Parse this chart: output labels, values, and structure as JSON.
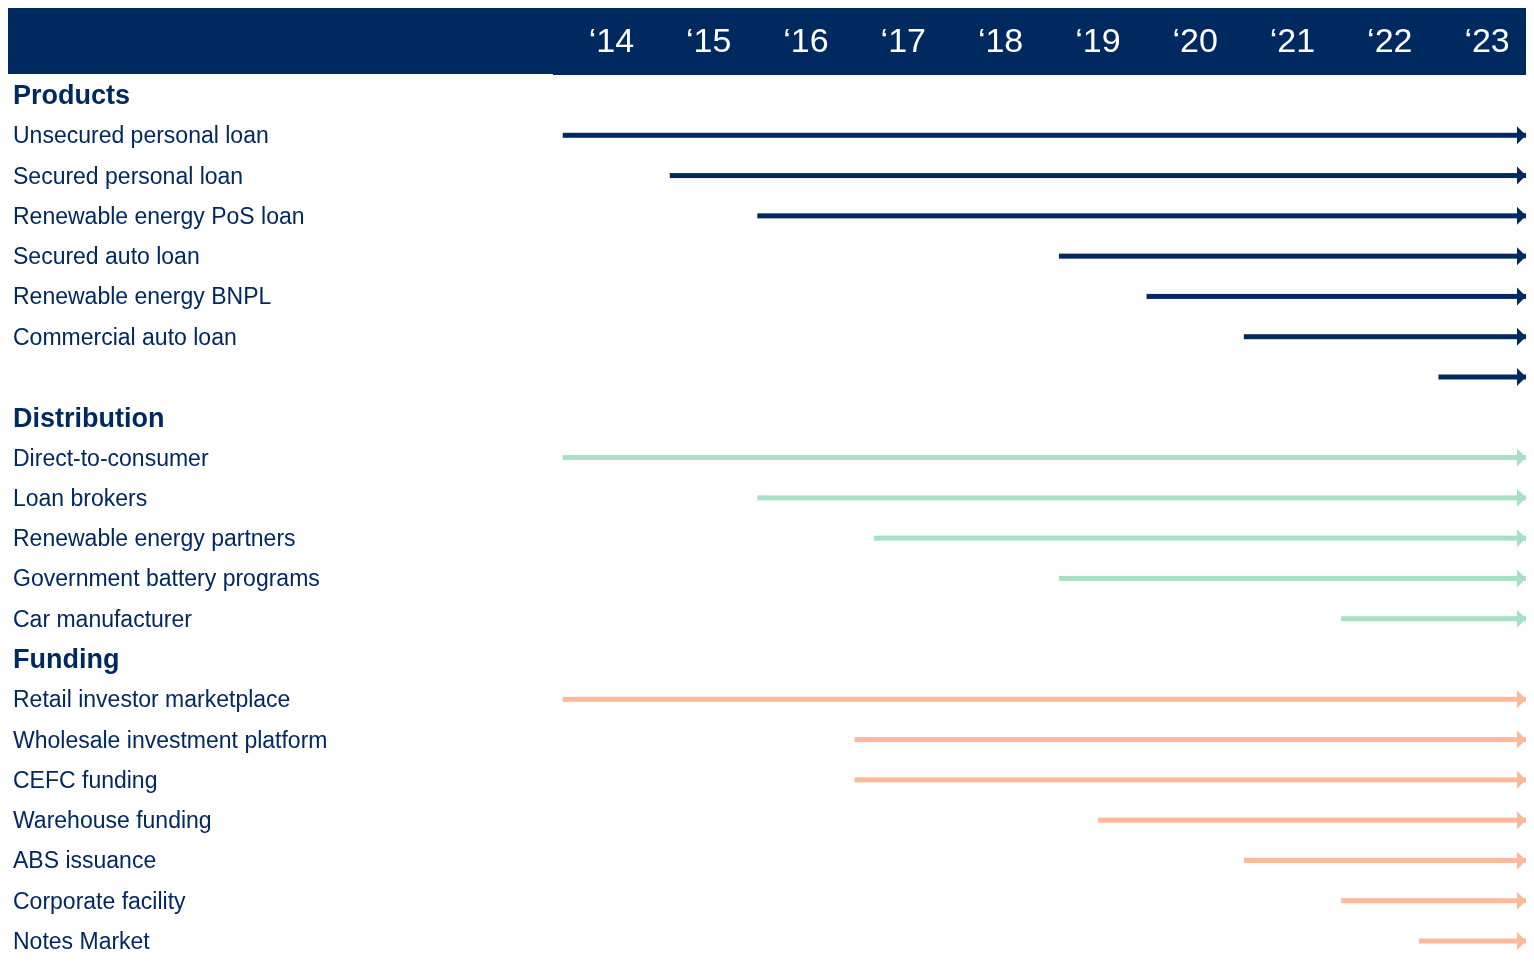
{
  "chart_data": {
    "type": "bar",
    "orientation": "horizontal",
    "categories": [
      "Products",
      "Unsecured personal loan",
      "Secured personal loan",
      "Renewable energy PoS loan",
      "Secured auto  loan",
      "Renewable energy BNPL",
      "Commercial auto loan",
      null,
      "Distribution",
      "Direct-to-consumer",
      "Loan brokers",
      "Renewable energy partners",
      "Government battery programs",
      "Car manufacturer",
      "Funding",
      "Retail investor marketplace",
      "Wholesale investment platform",
      "CEFC funding",
      "Warehouse funding",
      "ABS issuance",
      "Corporate facility",
      "Notes Market"
    ],
    "base": [
      null,
      13.5,
      14.6,
      15.5,
      18.6,
      19.5,
      20.5,
      22.5,
      null,
      13.5,
      15.5,
      16.7,
      18.6,
      21.5,
      null,
      13.5,
      16.5,
      16.5,
      19.0,
      20.5,
      21.5,
      22.3
    ],
    "values": [
      null,
      9.9,
      8.8,
      7.9,
      4.8,
      3.9,
      2.9,
      0.9,
      null,
      9.9,
      7.9,
      6.7,
      4.8,
      1.9,
      null,
      9.9,
      6.9,
      6.9,
      4.4,
      2.9,
      1.9,
      1.1
    ],
    "colors": [
      null,
      "#002960",
      "#002960",
      "#002960",
      "#002960",
      "#002960",
      "#002960",
      "#002960",
      null,
      "#a8e0c6",
      "#a8e0c6",
      "#a8e0c6",
      "#a8e0c6",
      "#a8e0c6",
      null,
      "#fdb99a",
      "#fdb99a",
      "#fdb99a",
      "#fdb99a",
      "#fdb99a",
      "#fdb99a",
      "#fdb99a"
    ],
    "xlim": [
      13.4,
      23.4
    ],
    "xticks": [
      {
        "value": 14,
        "label": "‘14"
      },
      {
        "value": 15,
        "label": "‘15"
      },
      {
        "value": 16,
        "label": "‘16"
      },
      {
        "value": 17,
        "label": "‘17"
      },
      {
        "value": 18,
        "label": "‘18"
      },
      {
        "value": 19,
        "label": "‘19"
      },
      {
        "value": 20,
        "label": "‘20"
      },
      {
        "value": 21,
        "label": "‘21"
      },
      {
        "value": 22,
        "label": "‘22"
      },
      {
        "value": 23,
        "label": "‘23"
      }
    ],
    "grid": false
  }
}
